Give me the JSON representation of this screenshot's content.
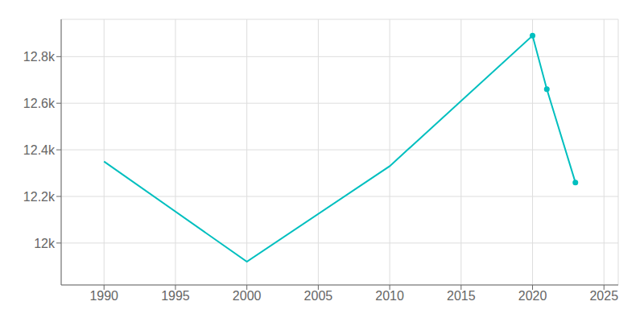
{
  "chart_data": {
    "type": "line",
    "x": [
      1990,
      2000,
      2010,
      2020,
      2021,
      2023
    ],
    "series": [
      {
        "type": "line",
        "marker": "none",
        "color": "#00BFBF",
        "values": [
          12350,
          11920,
          12330,
          12890,
          12660,
          12260
        ]
      },
      {
        "type": "scatter",
        "marker": "circle",
        "color": "#00BFBF",
        "values": [
          null,
          null,
          null,
          12890,
          12660,
          12260
        ]
      }
    ],
    "xlim": [
      1987,
      2026
    ],
    "ylim": [
      11820,
      12960
    ],
    "xticks": [
      1990,
      1995,
      2000,
      2005,
      2010,
      2015,
      2020,
      2025
    ],
    "yticks": [
      {
        "value": 12000,
        "label": "12k"
      },
      {
        "value": 12200,
        "label": "12.2k"
      },
      {
        "value": 12400,
        "label": "12.4k"
      },
      {
        "value": 12600,
        "label": "12.6k"
      },
      {
        "value": 12800,
        "label": "12.8k"
      }
    ],
    "grid": true
  }
}
